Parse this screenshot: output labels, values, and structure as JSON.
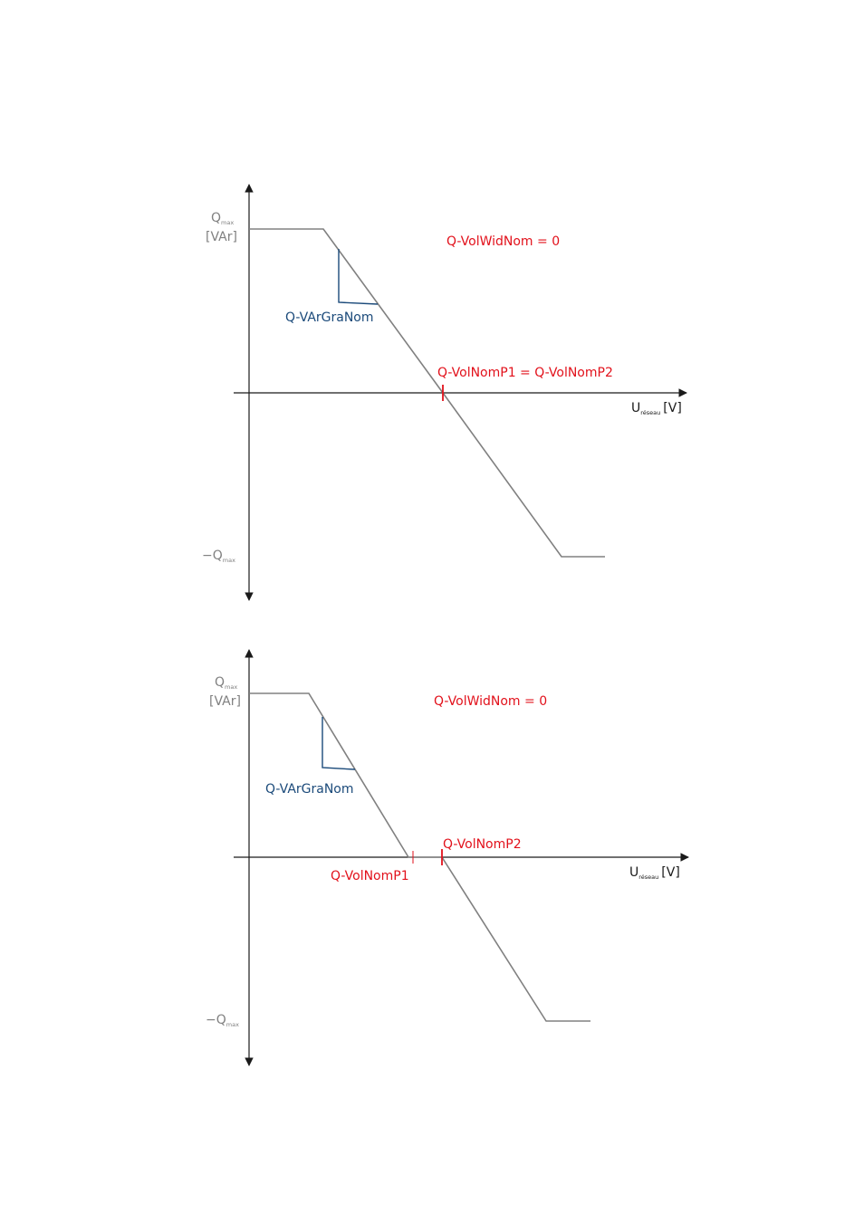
{
  "colors": {
    "axis": "#1a1a1a",
    "curve": "#808080",
    "red": "#e2111b",
    "blue": "#1b4a7a",
    "label_gray": "#808080"
  },
  "diagrams": [
    {
      "y_axis": {
        "q": "Q",
        "q_sub": "max",
        "unit": "[VAr]",
        "neg_prefix": "−",
        "neg_q": "Q",
        "neg_sub": "max"
      },
      "x_axis": {
        "u": "U",
        "u_sub": "réseau",
        "unit": "[V]"
      },
      "width_label": "Q-VolWidNom = 0",
      "gradient_label": "Q-VArGraNom",
      "point_label": "Q-VolNomP1 = Q-VolNomP2"
    },
    {
      "y_axis": {
        "q": "Q",
        "q_sub": "max",
        "unit": "[VAr]",
        "neg_prefix": "−",
        "neg_q": "Q",
        "neg_sub": "max"
      },
      "x_axis": {
        "u": "U",
        "u_sub": "réseau",
        "unit": "[V]"
      },
      "width_label": "Q-VolWidNom = 0",
      "gradient_label": "Q-VArGraNom",
      "p1_label": "Q-VolNomP1",
      "p2_label": "Q-VolNomP2"
    }
  ]
}
